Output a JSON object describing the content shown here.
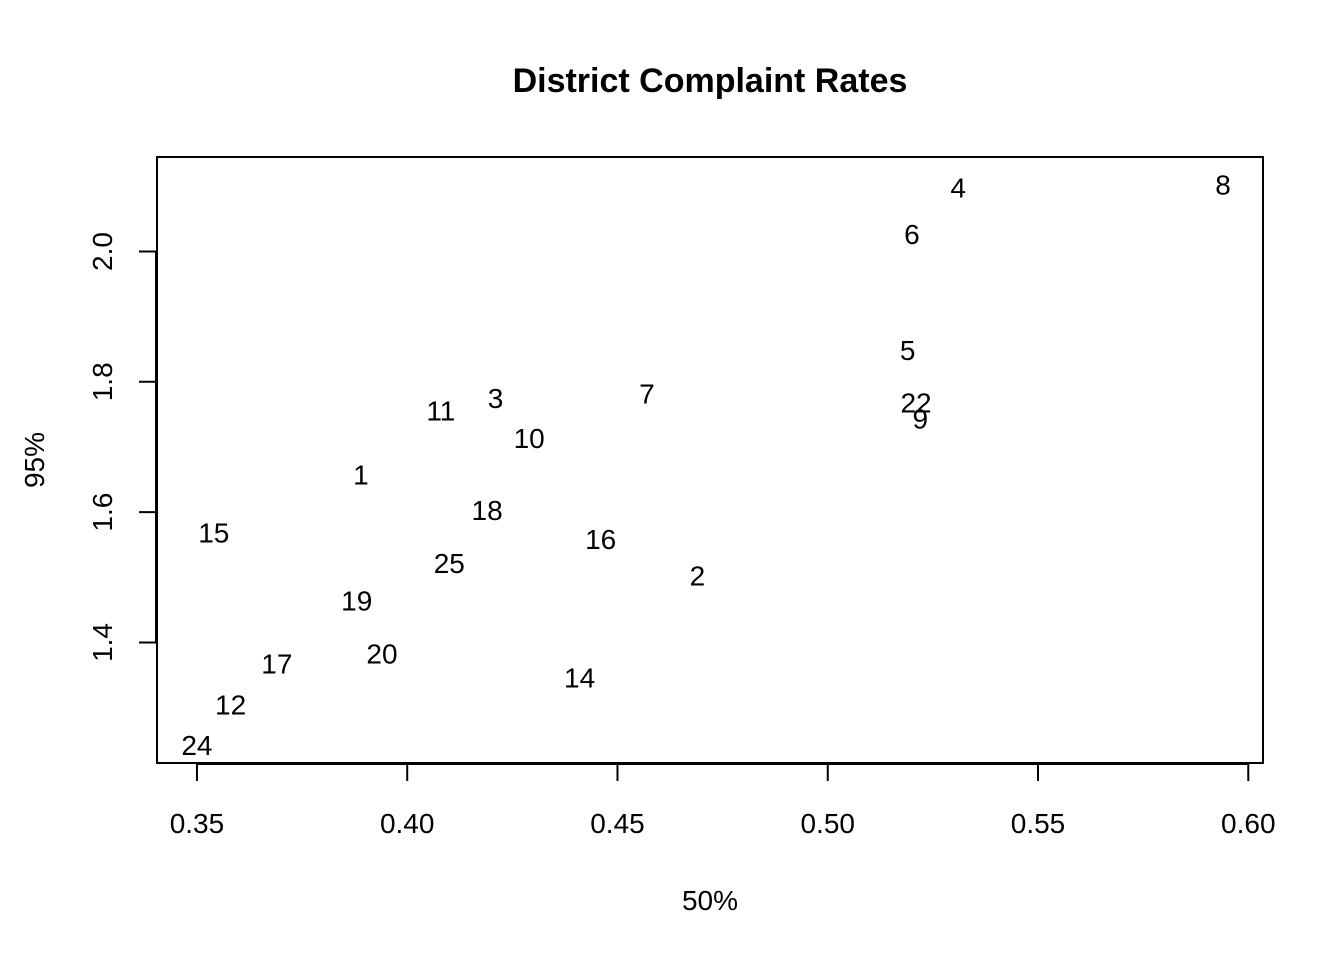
{
  "chart_data": {
    "type": "scatter",
    "title": "District Complaint Rates",
    "xlabel": "50%",
    "ylabel": "95%",
    "xlim": [
      0.3405,
      0.6035
    ],
    "ylim": [
      1.215,
      2.145
    ],
    "x_ticks": [
      {
        "value": 0.35,
        "label": "0.35"
      },
      {
        "value": 0.4,
        "label": "0.40"
      },
      {
        "value": 0.45,
        "label": "0.45"
      },
      {
        "value": 0.5,
        "label": "0.50"
      },
      {
        "value": 0.55,
        "label": "0.55"
      },
      {
        "value": 0.6,
        "label": "0.60"
      }
    ],
    "y_ticks": [
      {
        "value": 1.4,
        "label": "1.4"
      },
      {
        "value": 1.6,
        "label": "1.6"
      },
      {
        "value": 1.8,
        "label": "1.8"
      },
      {
        "value": 2.0,
        "label": "2.0"
      }
    ],
    "grid": false,
    "points": [
      {
        "label": "1",
        "x": 0.389,
        "y": 1.658
      },
      {
        "label": "2",
        "x": 0.469,
        "y": 1.503
      },
      {
        "label": "3",
        "x": 0.421,
        "y": 1.775
      },
      {
        "label": "4",
        "x": 0.531,
        "y": 2.098
      },
      {
        "label": "5",
        "x": 0.519,
        "y": 1.849
      },
      {
        "label": "6",
        "x": 0.52,
        "y": 2.027
      },
      {
        "label": "7",
        "x": 0.457,
        "y": 1.782
      },
      {
        "label": "8",
        "x": 0.594,
        "y": 2.103
      },
      {
        "label": "9",
        "x": 0.522,
        "y": 1.744
      },
      {
        "label": "10",
        "x": 0.429,
        "y": 1.714
      },
      {
        "label": "11",
        "x": 0.408,
        "y": 1.756
      },
      {
        "label": "12",
        "x": 0.358,
        "y": 1.305
      },
      {
        "label": "14",
        "x": 0.441,
        "y": 1.346
      },
      {
        "label": "15",
        "x": 0.354,
        "y": 1.569
      },
      {
        "label": "16",
        "x": 0.446,
        "y": 1.559
      },
      {
        "label": "17",
        "x": 0.369,
        "y": 1.368
      },
      {
        "label": "18",
        "x": 0.419,
        "y": 1.603
      },
      {
        "label": "19",
        "x": 0.388,
        "y": 1.464
      },
      {
        "label": "20",
        "x": 0.394,
        "y": 1.383
      },
      {
        "label": "22",
        "x": 0.521,
        "y": 1.768
      },
      {
        "label": "24",
        "x": 0.35,
        "y": 1.243
      },
      {
        "label": "25",
        "x": 0.41,
        "y": 1.522
      }
    ]
  }
}
